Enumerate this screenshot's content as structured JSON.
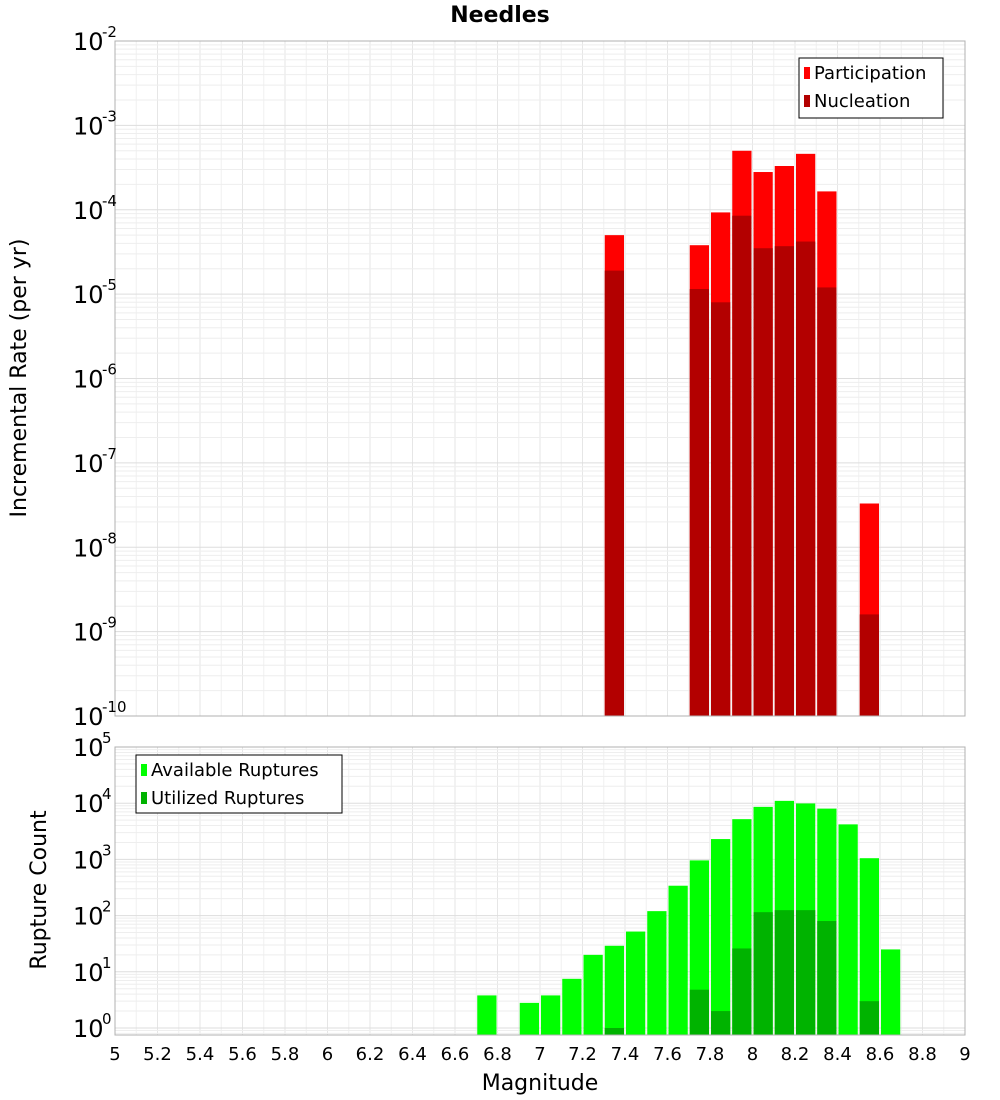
{
  "chart_data": {
    "title": "Needles",
    "x_axis": {
      "label": "Magnitude",
      "range": [
        5,
        9
      ],
      "ticks": [
        "5",
        "5.2",
        "5.4",
        "5.6",
        "5.8",
        "6",
        "6.2",
        "6.4",
        "6.6",
        "6.8",
        "7",
        "7.2",
        "7.4",
        "7.6",
        "7.8",
        "8",
        "8.2",
        "8.4",
        "8.6",
        "8.8",
        "9"
      ]
    },
    "bin_width": 0.1,
    "charts": [
      {
        "id": "rate",
        "type": "bar",
        "ylabel": "Incremental Rate (per yr)",
        "yscale": "log",
        "ylim": [
          1e-10,
          0.01
        ],
        "y_tick_exponents": [
          "-10",
          "-9",
          "-8",
          "-7",
          "-6",
          "-5",
          "-4",
          "-3",
          "-2"
        ],
        "legend_position": "top-right",
        "series": [
          {
            "name": "Participation",
            "color": "#ff0000",
            "x": [
              7.35,
              7.75,
              7.85,
              7.95,
              8.05,
              8.15,
              8.25,
              8.35,
              8.55
            ],
            "values": [
              5e-05,
              3.8e-05,
              9.3e-05,
              0.0005,
              0.00028,
              0.00033,
              0.00046,
              0.000165,
              3.3e-08
            ]
          },
          {
            "name": "Nucleation",
            "color": "#b30000",
            "x": [
              7.35,
              7.75,
              7.85,
              7.95,
              8.05,
              8.15,
              8.25,
              8.35,
              8.55
            ],
            "values": [
              1.9e-05,
              1.15e-05,
              8e-06,
              8.5e-05,
              3.5e-05,
              3.7e-05,
              4.2e-05,
              1.2e-05,
              1.6e-09
            ]
          }
        ]
      },
      {
        "id": "count",
        "type": "bar",
        "ylabel": "Rupture Count",
        "yscale": "log",
        "ylim": [
          0.75,
          100000
        ],
        "y_tick_exponents": [
          "0",
          "1",
          "2",
          "3",
          "4",
          "5"
        ],
        "legend_position": "top-left",
        "series": [
          {
            "name": "Available Ruptures",
            "color": "#00ff00",
            "x": [
              6.75,
              6.95,
              7.05,
              7.15,
              7.25,
              7.35,
              7.45,
              7.55,
              7.65,
              7.75,
              7.85,
              7.95,
              8.05,
              8.15,
              8.25,
              8.35,
              8.45,
              8.55,
              8.65
            ],
            "values": [
              3.8,
              2.8,
              3.8,
              7.5,
              20,
              29,
              52,
              120,
              340,
              960,
              2300,
              5200,
              8600,
              11000,
              9900,
              8000,
              4200,
              1050,
              25
            ]
          },
          {
            "name": "Utilized Ruptures",
            "color": "#00b300",
            "x": [
              7.35,
              7.75,
              7.85,
              7.95,
              8.05,
              8.15,
              8.25,
              8.35,
              8.55
            ],
            "values": [
              1,
              4.8,
              2,
              26,
              115,
              125,
              125,
              80,
              3
            ]
          }
        ]
      }
    ]
  }
}
